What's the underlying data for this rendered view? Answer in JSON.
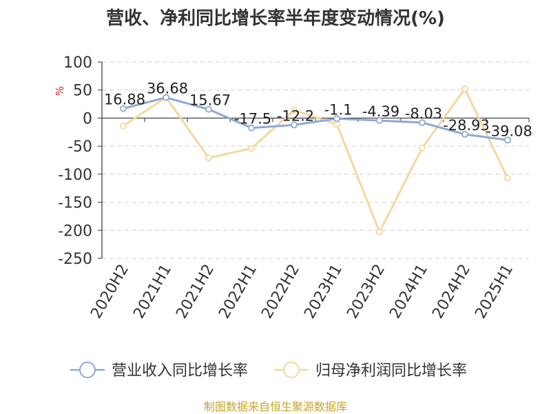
{
  "title": "营收、净利同比增长率半年度变动情况(%)",
  "source": "制图数据来自恒生聚源数据库",
  "colors": {
    "revenue": "#8fa8d4",
    "profit": "#f5d79e",
    "grid": "#cccccc",
    "axis": "#333333",
    "ylabel": "#cc2222",
    "source": "#c9a227"
  },
  "chart_data": {
    "type": "line",
    "ylabel": "%",
    "ylim": [
      -250,
      100
    ],
    "yticks": [
      100,
      50,
      0,
      -50,
      -100,
      -150,
      -200,
      -250
    ],
    "grid": true,
    "legend_position": "bottom",
    "categories": [
      "2020H2",
      "2021H1",
      "2021H2",
      "2022H1",
      "2022H2",
      "2023H1",
      "2023H2",
      "2024H1",
      "2024H2",
      "2025H1"
    ],
    "series": [
      {
        "name": "营业收入同比增长率",
        "values": [
          16.88,
          36.68,
          15.67,
          -17.5,
          -12.2,
          -1.1,
          -4.39,
          -8.03,
          -28.93,
          -39.08
        ],
        "labels": [
          "16.88",
          "36.68",
          "15.67",
          "-17.5",
          "-12.2",
          "-1.1",
          "-4.39",
          "-8.03",
          "-28.93",
          "-39.08"
        ]
      },
      {
        "name": "归母净利润同比增长率",
        "values": [
          -14,
          37,
          -71,
          -54,
          14,
          -11,
          -203,
          -53,
          52,
          -107
        ]
      }
    ]
  }
}
